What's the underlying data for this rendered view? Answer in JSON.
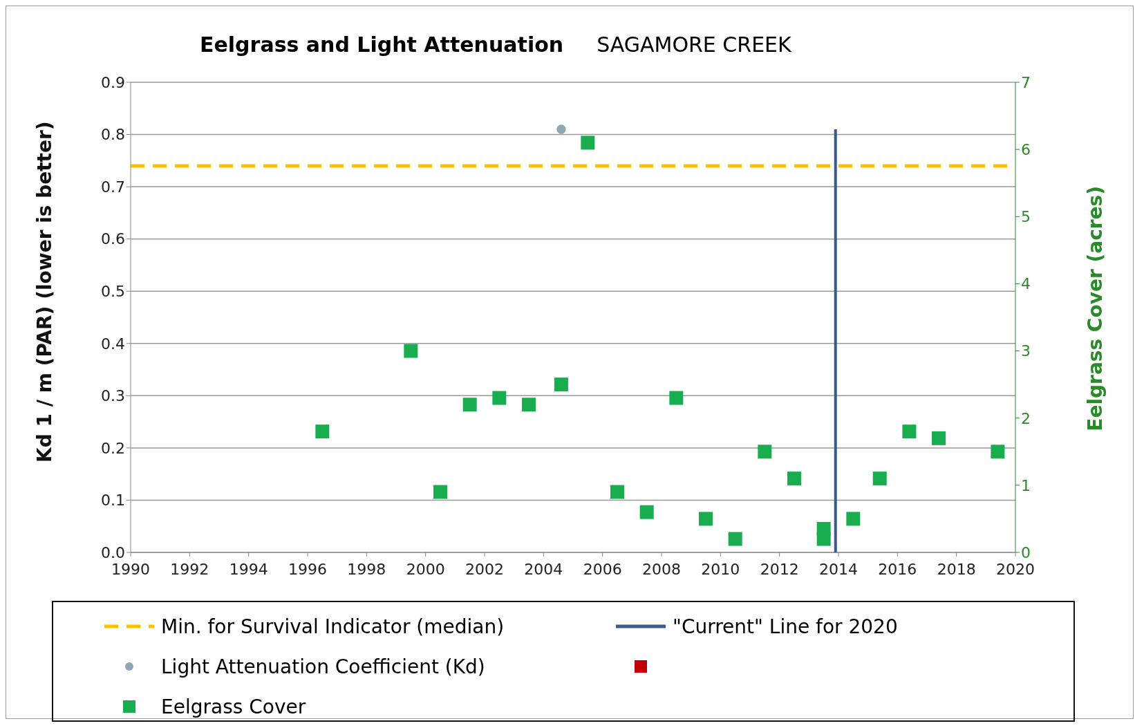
{
  "chart_data": {
    "type": "scatter",
    "title": "Eelgrass and Light Attenuation",
    "subtitle": "SAGAMORE CREEK",
    "ylabel": "Kd 1 / m (PAR)   (lower is better)",
    "y2label": "Eelgrass Cover (acres)",
    "xlim": [
      1990,
      2020
    ],
    "xticks": [
      1990,
      1992,
      1994,
      1996,
      1998,
      2000,
      2002,
      2004,
      2006,
      2008,
      2010,
      2012,
      2014,
      2016,
      2018,
      2020
    ],
    "ylim": [
      0,
      0.9
    ],
    "yticks": [
      {
        "value": 0,
        "label": "0.0"
      },
      0.1,
      0.2,
      0.3,
      0.4,
      0.5,
      0.6,
      0.7,
      0.8,
      0.9
    ],
    "y2lim": [
      0,
      7
    ],
    "y2ticks": [
      0,
      1,
      2,
      3,
      4,
      5,
      6,
      7
    ],
    "grid": "y",
    "legend": "bottom",
    "ref_lines": [
      {
        "axis": "y",
        "value": 0.74,
        "label": "Min. for Survival Indicator (median)",
        "color": "#ffc000",
        "line_style": "dashed"
      }
    ],
    "series": [
      {
        "name": "\"Current\" Line for 2020",
        "type": "line",
        "color": "#3b5a8a",
        "marker": "none",
        "line_style": "solid",
        "x": [
          2013.9,
          2013.9
        ],
        "values": [
          0,
          0.81
        ]
      },
      {
        "name": "Light Attenuation Coefficient (Kd)",
        "color": "#8ea9b5",
        "marker": "circle",
        "x": [
          2004.6
        ],
        "values": [
          0.81
        ]
      },
      {
        "name": "Eelgrass Cover",
        "axis": "y2",
        "color": "#1aad50",
        "marker": "square",
        "x": [
          1996.5,
          1999.5,
          2000.5,
          2001.5,
          2002.5,
          2003.5,
          2004.6,
          2005.5,
          2006.5,
          2007.5,
          2008.5,
          2009.5,
          2010.5,
          2011.5,
          2012.5,
          2013.5,
          2013.5,
          2014.5,
          2015.4,
          2016.4,
          2017.4,
          2019.4
        ],
        "values": [
          1.8,
          3.0,
          0.9,
          2.2,
          2.3,
          2.2,
          2.5,
          6.1,
          0.9,
          0.6,
          2.3,
          0.5,
          0.2,
          1.5,
          1.1,
          0.35,
          0.2,
          0.5,
          1.1,
          1.8,
          1.7,
          1.5
        ]
      }
    ]
  }
}
